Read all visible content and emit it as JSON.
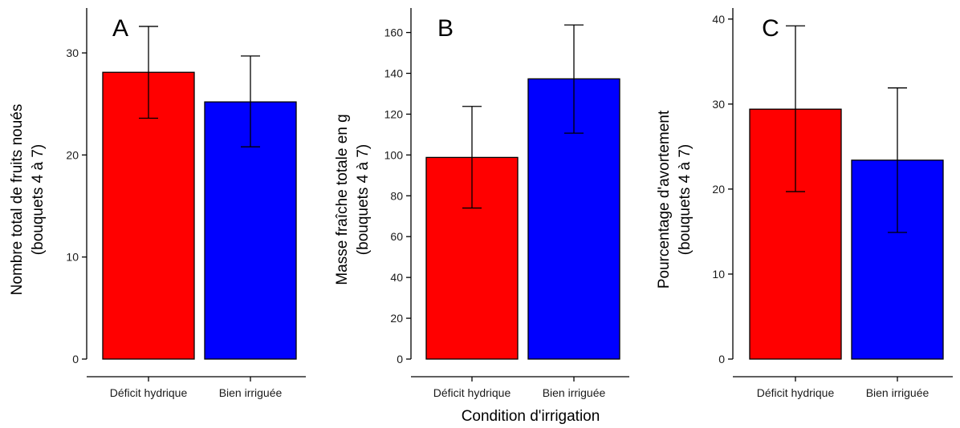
{
  "shared_xlabel": "Condition d'irrigation",
  "colors": {
    "Déficit hydrique": "#ff0000",
    "Bien irriguée": "#0000ff"
  },
  "chart_data": [
    {
      "type": "bar",
      "panel": "A",
      "categories": [
        "Déficit hydrique",
        "Bien irriguée"
      ],
      "values": [
        28.1,
        25.2
      ],
      "error_low": [
        23.6,
        20.8
      ],
      "error_high": [
        32.6,
        29.7
      ],
      "ylabel": [
        "Nombre total de fruits noués",
        "(bouquets 4 à 7)"
      ],
      "ylim": [
        0,
        34.4
      ],
      "yticks": [
        0,
        10,
        20,
        30
      ],
      "xlabel": ""
    },
    {
      "type": "bar",
      "panel": "B",
      "categories": [
        "Déficit hydrique",
        "Bien irriguée"
      ],
      "values": [
        98.8,
        137.3
      ],
      "error_low": [
        74.0,
        110.7
      ],
      "error_high": [
        123.8,
        163.7
      ],
      "ylabel": [
        "Masse fraîche totale en g",
        "(bouquets 4 à 7)"
      ],
      "ylim": [
        0,
        172
      ],
      "yticks": [
        0,
        20,
        40,
        60,
        80,
        100,
        120,
        140,
        160
      ],
      "xlabel": "Condition d'irrigation"
    },
    {
      "type": "bar",
      "panel": "C",
      "categories": [
        "Déficit hydrique",
        "Bien irriguée"
      ],
      "values": [
        29.4,
        23.4
      ],
      "error_low": [
        19.7,
        14.9
      ],
      "error_high": [
        39.2,
        31.9
      ],
      "ylabel": [
        "Pourcentage d'avortement",
        "(bouquets 4 à 7)"
      ],
      "ylim": [
        0,
        41.3
      ],
      "yticks": [
        0,
        10,
        20,
        30,
        40
      ],
      "xlabel": ""
    }
  ]
}
